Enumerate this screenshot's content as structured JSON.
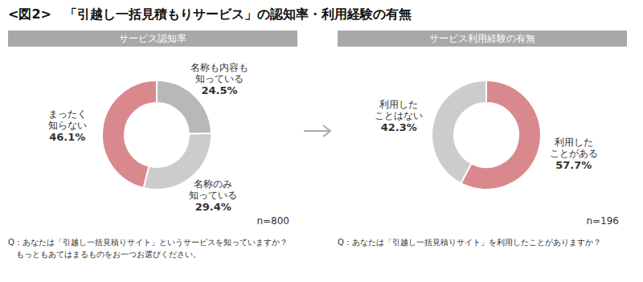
{
  "title": "<図2>　「引越し一括見積もりサービス」の認知率・利用経験の有無",
  "chart_data": [
    {
      "type": "donut",
      "title": "サービス認知率",
      "categories": [
        "名称も内容も\n知っている",
        "名称のみ\n知っている",
        "まったく\n知らない"
      ],
      "values": [
        24.5,
        29.4,
        46.1
      ],
      "value_labels": [
        "24.5%",
        "29.4%",
        "46.1%"
      ],
      "colors": [
        "#b8b8b8",
        "#cccccc",
        "#d9898e"
      ],
      "data_labels": true,
      "annotations": [
        "n=800",
        "Q：あなたは「引越し一括見積りサイト」というサービスを知っていますか？",
        "　もっともあてはまるものをお一つお選びください。"
      ]
    },
    {
      "type": "donut",
      "title": "サービス利用経験の有無",
      "categories": [
        "利用した\nことがある",
        "利用した\nことはない"
      ],
      "values": [
        57.7,
        42.3
      ],
      "value_labels": [
        "57.7%",
        "42.3%"
      ],
      "colors": [
        "#d9898e",
        "#cccccc"
      ],
      "data_labels": true,
      "annotations": [
        "n=196",
        "Q：あなたは「引越し一括見積りサイト」を利用したことがありますか？"
      ]
    }
  ]
}
